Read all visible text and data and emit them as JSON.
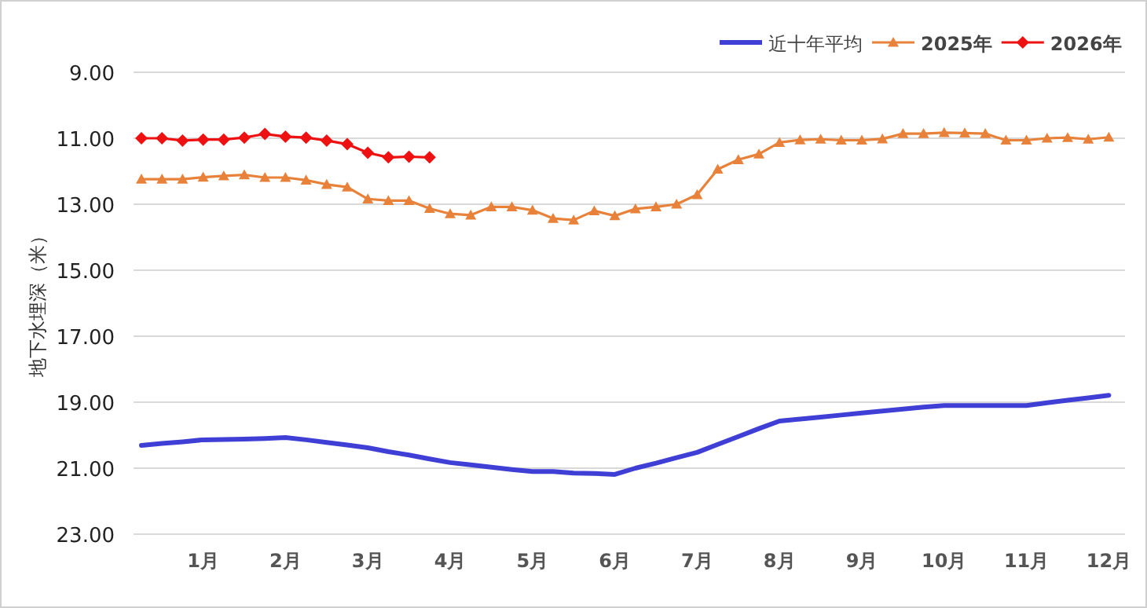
{
  "chart_data": {
    "type": "line",
    "ylabel": "地下水埋深（米）",
    "categories": [
      null,
      null,
      null,
      "1月",
      null,
      null,
      null,
      "2月",
      null,
      null,
      null,
      "3月",
      null,
      null,
      null,
      "4月",
      null,
      null,
      null,
      "5月",
      null,
      null,
      null,
      "6月",
      null,
      null,
      null,
      "7月",
      null,
      null,
      null,
      "8月",
      null,
      null,
      null,
      "9月",
      null,
      null,
      null,
      "10月",
      null,
      null,
      null,
      "11月",
      null,
      null,
      null,
      "12月"
    ],
    "ylim": [
      23,
      9
    ],
    "yticks": [
      {
        "value": 9,
        "label": "9.00"
      },
      {
        "value": 11,
        "label": "11.00"
      },
      {
        "value": 13,
        "label": "13.00"
      },
      {
        "value": 15,
        "label": "15.00"
      },
      {
        "value": 17,
        "label": "17.00"
      },
      {
        "value": 19,
        "label": "19.00"
      },
      {
        "value": 21,
        "label": "21.00"
      },
      {
        "value": 23,
        "label": "23.00"
      }
    ],
    "grid": "y",
    "legend": "top right",
    "series": [
      {
        "name": "近十年平均",
        "color": "#3f3fd6",
        "marker": "none",
        "values": [
          20.31,
          20.25,
          20.2,
          20.14,
          20.13,
          20.12,
          20.1,
          20.07,
          20.14,
          20.22,
          20.3,
          20.38,
          20.5,
          20.6,
          20.72,
          20.83,
          20.9,
          20.97,
          21.04,
          21.1,
          21.1,
          21.15,
          21.16,
          21.19,
          21.0,
          20.85,
          20.68,
          20.52,
          20.28,
          20.04,
          19.8,
          19.57,
          19.51,
          19.45,
          19.39,
          19.33,
          19.27,
          19.21,
          19.15,
          19.1,
          19.1,
          19.1,
          19.1,
          19.1,
          19.02,
          18.94,
          18.87,
          18.79
        ]
      },
      {
        "name": "2025年",
        "color": "#e8823a",
        "marker": "triangle",
        "values": [
          12.24,
          12.24,
          12.24,
          12.18,
          12.14,
          12.11,
          12.19,
          12.19,
          12.27,
          12.4,
          12.48,
          12.84,
          12.89,
          12.89,
          13.13,
          13.29,
          13.33,
          13.08,
          13.08,
          13.18,
          13.43,
          13.48,
          13.2,
          13.35,
          13.14,
          13.08,
          13.0,
          12.71,
          11.94,
          11.65,
          11.48,
          11.13,
          11.05,
          11.03,
          11.06,
          11.06,
          11.02,
          10.86,
          10.86,
          10.83,
          10.84,
          10.86,
          11.06,
          11.06,
          11.0,
          10.98,
          11.03,
          10.97
        ]
      },
      {
        "name": "2026年",
        "color": "#ee1111",
        "marker": "diamond",
        "values": [
          11.0,
          11.0,
          11.07,
          11.04,
          11.04,
          10.98,
          10.87,
          10.95,
          10.98,
          11.07,
          11.18,
          11.44,
          11.58,
          11.56,
          11.58,
          null,
          null,
          null,
          null,
          null,
          null,
          null,
          null,
          null,
          null,
          null,
          null,
          null,
          null,
          null,
          null,
          null,
          null,
          null,
          null,
          null,
          null,
          null,
          null,
          null,
          null,
          null,
          null,
          null,
          null,
          null,
          null,
          null
        ]
      }
    ]
  }
}
